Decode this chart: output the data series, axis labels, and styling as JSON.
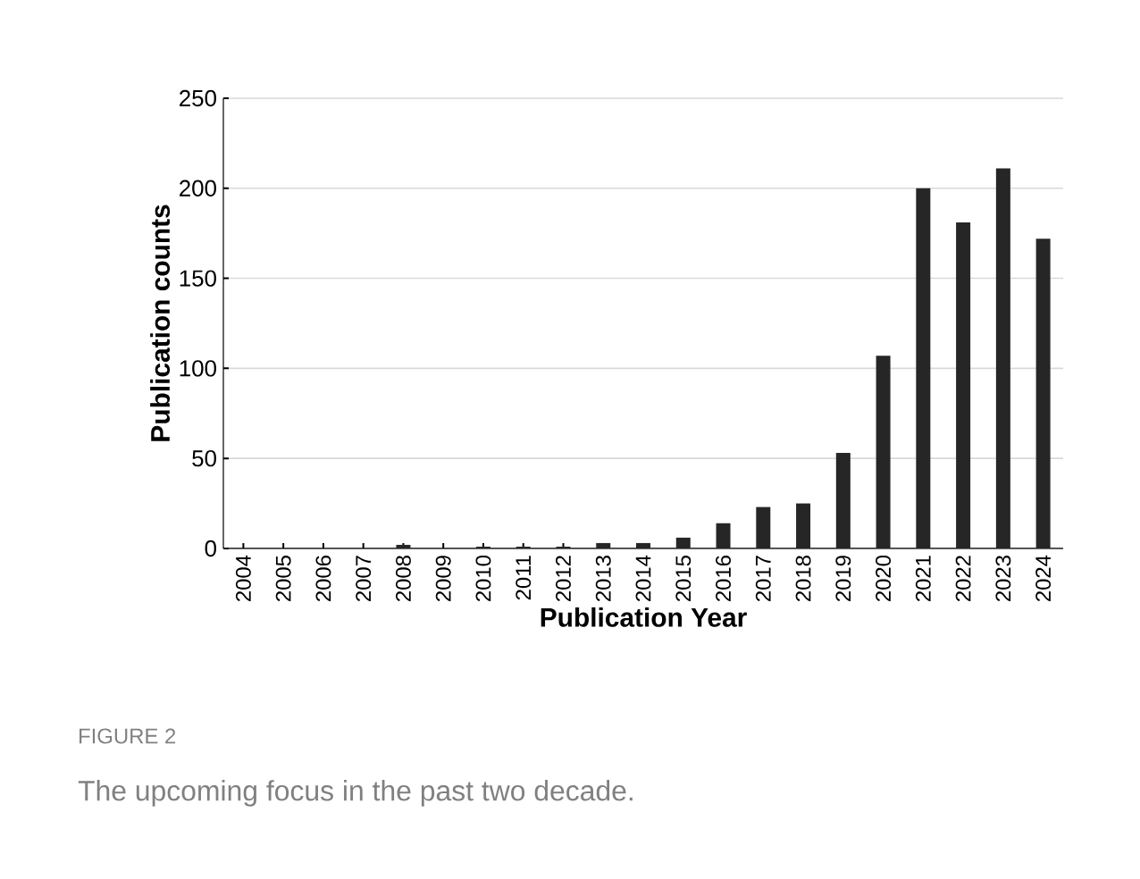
{
  "chart_data": {
    "type": "bar",
    "xlabel": "Publication Year",
    "ylabel": "Publication counts",
    "categories": [
      "2004",
      "2005",
      "2006",
      "2007",
      "2008",
      "2009",
      "2010",
      "2011",
      "2012",
      "2013",
      "2014",
      "2015",
      "2016",
      "2017",
      "2018",
      "2019",
      "2020",
      "2021",
      "2022",
      "2023",
      "2024"
    ],
    "values": [
      0,
      0,
      0,
      0,
      2,
      0,
      1,
      1,
      1,
      3,
      3,
      6,
      14,
      23,
      25,
      53,
      107,
      200,
      181,
      211,
      172
    ],
    "color": "#262626",
    "ylim": [
      0,
      250
    ],
    "yticks": [
      0,
      50,
      100,
      150,
      200,
      250
    ],
    "grid": "y",
    "annotations": [
      "FIGURE 2",
      "The upcoming focus in the past two decade."
    ]
  }
}
